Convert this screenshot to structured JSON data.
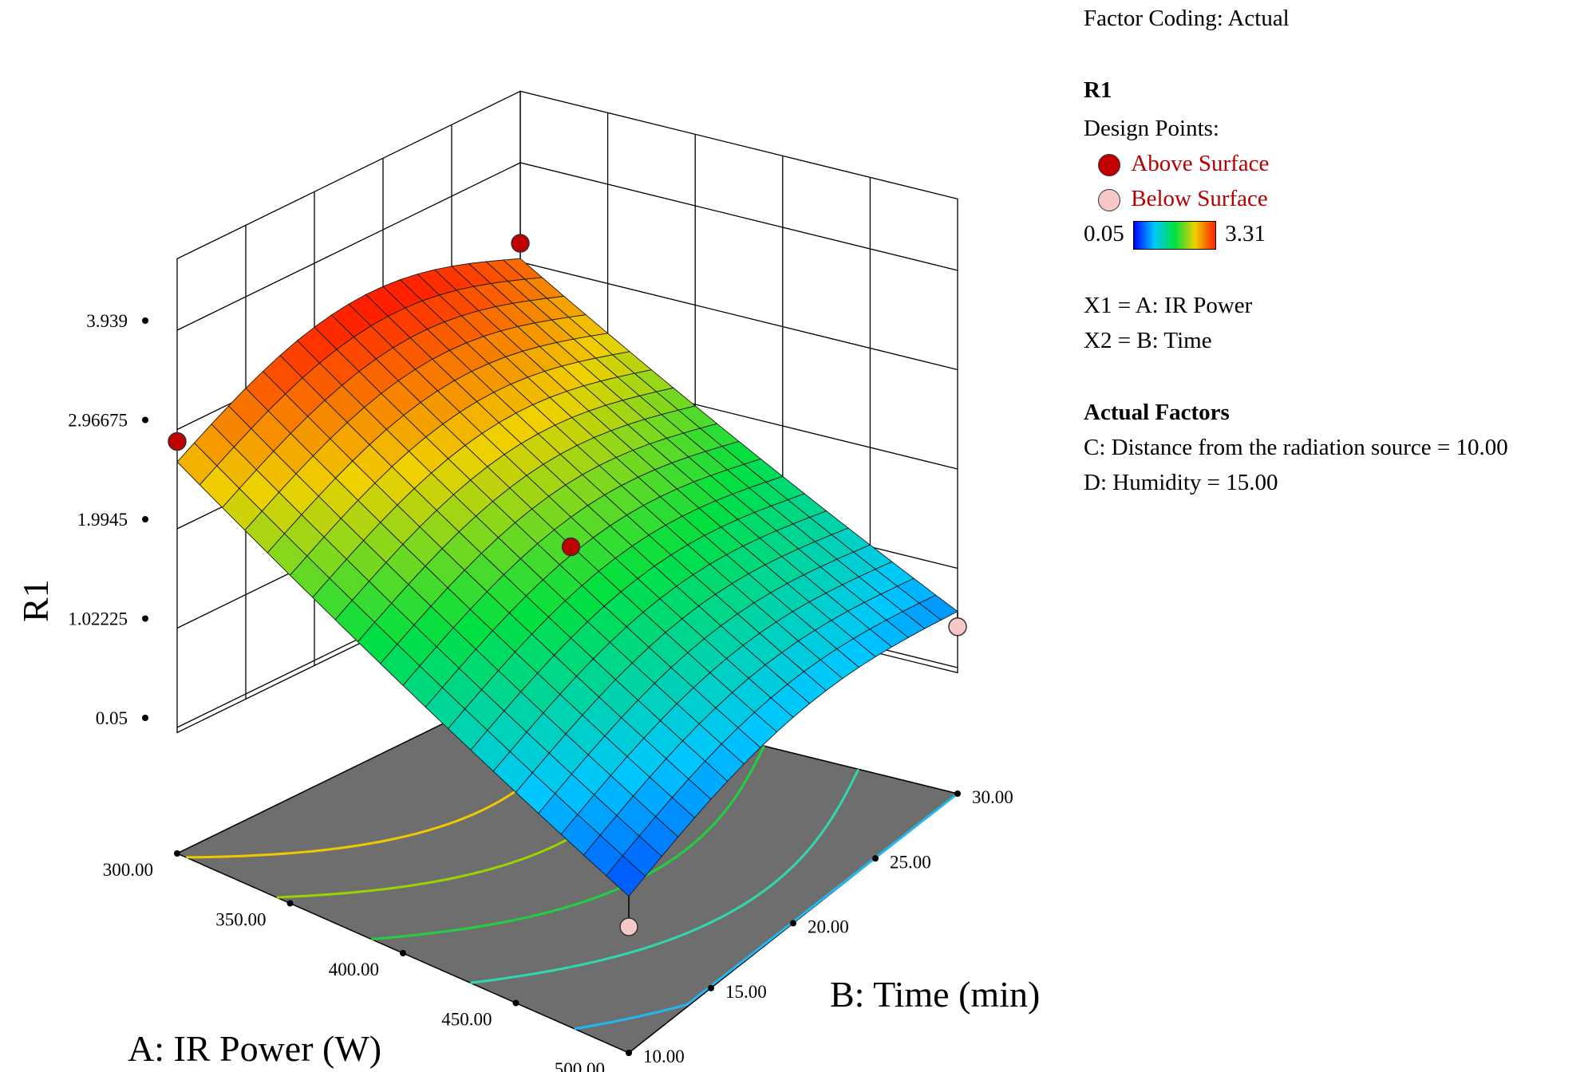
{
  "chart_data": {
    "type": "surface",
    "zlabel": "R1",
    "xlabel": "A: IR Power (W)",
    "ylabel": "B: Time (min)",
    "x_ticks": [
      "300.00",
      "350.00",
      "400.00",
      "450.00",
      "500.00"
    ],
    "y_ticks": [
      "10.00",
      "15.00",
      "20.00",
      "25.00",
      "30.00"
    ],
    "z_ticks": [
      "0.05",
      "1.02225",
      "1.9945",
      "2.96675",
      "3.939"
    ],
    "xlim": [
      300,
      500
    ],
    "ylim": [
      10,
      30
    ],
    "zlim": [
      0.05,
      3.939
    ],
    "surface_corners": [
      {
        "A": 300,
        "B": 10,
        "R1": 2.65
      },
      {
        "A": 300,
        "B": 30,
        "R1": 3.0
      },
      {
        "A": 500,
        "B": 10,
        "R1": 0.35
      },
      {
        "A": 500,
        "B": 30,
        "R1": 0.6
      }
    ],
    "design_points": [
      {
        "A": 300,
        "B": 10,
        "R1": 2.85,
        "position": "above"
      },
      {
        "A": 300,
        "B": 30,
        "R1": 3.15,
        "position": "above"
      },
      {
        "A": 400,
        "B": 20,
        "R1": 1.75,
        "position": "above"
      },
      {
        "A": 500,
        "B": 30,
        "R1": 0.45,
        "position": "below"
      },
      {
        "A": 500,
        "B": 10,
        "R1": 0.05,
        "position": "below"
      }
    ],
    "contours": [
      {
        "color": "#f0c800"
      },
      {
        "color": "#9ad400"
      },
      {
        "color": "#20d040"
      },
      {
        "color": "#30d8b0"
      },
      {
        "color": "#20b8f0"
      }
    ],
    "floor_color": "#6e6e6e"
  },
  "legend": {
    "factor_coding": "Factor Coding: Actual",
    "response": "R1",
    "design_points_label": "Design Points:",
    "above": "Above Surface",
    "below": "Below Surface",
    "above_color": "#c00000",
    "below_color": "#f8c8c8",
    "scale_min": "0.05",
    "scale_max": "3.31",
    "x1": "X1 = A: IR Power",
    "x2": "X2 = B: Time",
    "actual_factors_title": "Actual Factors",
    "factor_c": "C: Distance from the radiation source = 10.00",
    "factor_d": "D: Humidity  = 15.00"
  }
}
